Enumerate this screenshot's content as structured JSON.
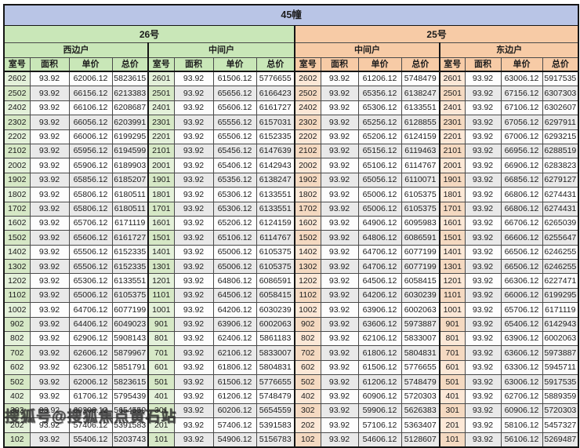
{
  "title": "45幢",
  "watermark": "搜狐号@搜狐焦点黄石站",
  "column_headers": [
    "室号",
    "面积",
    "单价",
    "总价"
  ],
  "buildings": [
    {
      "name": "26号",
      "color": "#c9e7b8"
    },
    {
      "name": "25号",
      "color": "#f7cba6"
    }
  ],
  "colors": {
    "title_band": "#b9c5e6",
    "building_26_green": "#c9e7b8",
    "building_25_orange": "#f7cba6",
    "stripe_gray": "#e9e9e9",
    "border_dark": "#151515"
  },
  "groups": [
    {
      "building": "26号",
      "unit": "西边户",
      "theme": "green",
      "rows": [
        [
          "2602",
          "93.92",
          "62006.12",
          "5823615"
        ],
        [
          "2502",
          "93.92",
          "66156.12",
          "6213383"
        ],
        [
          "2402",
          "93.92",
          "66106.12",
          "6208687"
        ],
        [
          "2302",
          "93.92",
          "66056.12",
          "6203991"
        ],
        [
          "2202",
          "93.92",
          "66006.12",
          "6199295"
        ],
        [
          "2102",
          "93.92",
          "65956.12",
          "6194599"
        ],
        [
          "2002",
          "93.92",
          "65906.12",
          "6189903"
        ],
        [
          "1902",
          "93.92",
          "65856.12",
          "6185207"
        ],
        [
          "1802",
          "93.92",
          "65806.12",
          "6180511"
        ],
        [
          "1702",
          "93.92",
          "65806.12",
          "6180511"
        ],
        [
          "1602",
          "93.92",
          "65706.12",
          "6171119"
        ],
        [
          "1502",
          "93.92",
          "65606.12",
          "6161727"
        ],
        [
          "1402",
          "93.92",
          "65506.12",
          "6152335"
        ],
        [
          "1302",
          "93.92",
          "65506.12",
          "6152335"
        ],
        [
          "1202",
          "93.92",
          "65306.12",
          "6133551"
        ],
        [
          "1102",
          "93.92",
          "65006.12",
          "6105375"
        ],
        [
          "1002",
          "93.92",
          "64706.12",
          "6077199"
        ],
        [
          "902",
          "93.92",
          "64406.12",
          "6049023"
        ],
        [
          "802",
          "93.92",
          "62906.12",
          "5908143"
        ],
        [
          "702",
          "93.92",
          "62606.12",
          "5879967"
        ],
        [
          "602",
          "93.92",
          "62306.12",
          "5851791"
        ],
        [
          "502",
          "93.92",
          "62006.12",
          "5823615"
        ],
        [
          "402",
          "93.92",
          "61706.12",
          "5795439"
        ],
        [
          "302",
          "93.92",
          "60206.12",
          "5654559"
        ],
        [
          "202",
          "93.92",
          "57406.12",
          "5391583"
        ],
        [
          "102",
          "93.92",
          "55406.12",
          "5203743"
        ]
      ]
    },
    {
      "building": "26号",
      "unit": "中间户",
      "theme": "green",
      "rows": [
        [
          "2601",
          "93.92",
          "61506.12",
          "5776655"
        ],
        [
          "2501",
          "93.92",
          "65656.12",
          "6166423"
        ],
        [
          "2401",
          "93.92",
          "65606.12",
          "6161727"
        ],
        [
          "2301",
          "93.92",
          "65556.12",
          "6157031"
        ],
        [
          "2201",
          "93.92",
          "65506.12",
          "6152335"
        ],
        [
          "2101",
          "93.92",
          "65456.12",
          "6147639"
        ],
        [
          "2001",
          "93.92",
          "65406.12",
          "6142943"
        ],
        [
          "1901",
          "93.92",
          "65356.12",
          "6138247"
        ],
        [
          "1801",
          "93.92",
          "65306.12",
          "6133551"
        ],
        [
          "1701",
          "93.92",
          "65306.12",
          "6133551"
        ],
        [
          "1601",
          "93.92",
          "65206.12",
          "6124159"
        ],
        [
          "1501",
          "93.92",
          "65106.12",
          "6114767"
        ],
        [
          "1401",
          "93.92",
          "65006.12",
          "6105375"
        ],
        [
          "1301",
          "93.92",
          "65006.12",
          "6105375"
        ],
        [
          "1201",
          "93.92",
          "64806.12",
          "6086591"
        ],
        [
          "1101",
          "93.92",
          "64506.12",
          "6058415"
        ],
        [
          "1001",
          "93.92",
          "64206.12",
          "6030239"
        ],
        [
          "901",
          "93.92",
          "63906.12",
          "6002063"
        ],
        [
          "801",
          "93.92",
          "62406.12",
          "5861183"
        ],
        [
          "701",
          "93.92",
          "62106.12",
          "5833007"
        ],
        [
          "601",
          "93.92",
          "61806.12",
          "5804831"
        ],
        [
          "501",
          "93.92",
          "61506.12",
          "5776655"
        ],
        [
          "401",
          "93.92",
          "61206.12",
          "5748479"
        ],
        [
          "301",
          "93.92",
          "60206.12",
          "5654559"
        ],
        [
          "201",
          "93.92",
          "57406.12",
          "5391583"
        ],
        [
          "101",
          "93.92",
          "54906.12",
          "5156783"
        ]
      ]
    },
    {
      "building": "25号",
      "unit": "中间户",
      "theme": "orange",
      "rows": [
        [
          "2602",
          "93.92",
          "61206.12",
          "5748479"
        ],
        [
          "2502",
          "93.92",
          "65356.12",
          "6138247"
        ],
        [
          "2402",
          "93.92",
          "65306.12",
          "6133551"
        ],
        [
          "2302",
          "93.92",
          "65256.12",
          "6128855"
        ],
        [
          "2202",
          "93.92",
          "65206.12",
          "6124159"
        ],
        [
          "2102",
          "93.92",
          "65156.12",
          "6119463"
        ],
        [
          "2002",
          "93.92",
          "65106.12",
          "6114767"
        ],
        [
          "1902",
          "93.92",
          "65056.12",
          "6110071"
        ],
        [
          "1802",
          "93.92",
          "65006.12",
          "6105375"
        ],
        [
          "1702",
          "93.92",
          "65006.12",
          "6105375"
        ],
        [
          "1602",
          "93.92",
          "64906.12",
          "6095983"
        ],
        [
          "1502",
          "93.92",
          "64806.12",
          "6086591"
        ],
        [
          "1402",
          "93.92",
          "64706.12",
          "6077199"
        ],
        [
          "1302",
          "93.92",
          "64706.12",
          "6077199"
        ],
        [
          "1202",
          "93.92",
          "64506.12",
          "6058415"
        ],
        [
          "1102",
          "93.92",
          "64206.12",
          "6030239"
        ],
        [
          "1002",
          "93.92",
          "63906.12",
          "6002063"
        ],
        [
          "902",
          "93.92",
          "63606.12",
          "5973887"
        ],
        [
          "802",
          "93.92",
          "62106.12",
          "5833007"
        ],
        [
          "702",
          "93.92",
          "61806.12",
          "5804831"
        ],
        [
          "602",
          "93.92",
          "61506.12",
          "5776655"
        ],
        [
          "502",
          "93.92",
          "61206.12",
          "5748479"
        ],
        [
          "402",
          "93.92",
          "60906.12",
          "5720303"
        ],
        [
          "302",
          "93.92",
          "59906.12",
          "5626383"
        ],
        [
          "202",
          "93.92",
          "57106.12",
          "5363407"
        ],
        [
          "102",
          "93.92",
          "54606.12",
          "5128607"
        ]
      ]
    },
    {
      "building": "25号",
      "unit": "东边户",
      "theme": "orange",
      "rows": [
        [
          "2601",
          "93.92",
          "63006.12",
          "5917535"
        ],
        [
          "2501",
          "93.92",
          "67156.12",
          "6307303"
        ],
        [
          "2401",
          "93.92",
          "67106.12",
          "6302607"
        ],
        [
          "2301",
          "93.92",
          "67056.12",
          "6297911"
        ],
        [
          "2201",
          "93.92",
          "67006.12",
          "6293215"
        ],
        [
          "2101",
          "93.92",
          "66956.12",
          "6288519"
        ],
        [
          "2001",
          "93.92",
          "66906.12",
          "6283823"
        ],
        [
          "1901",
          "93.92",
          "66856.12",
          "6279127"
        ],
        [
          "1801",
          "93.92",
          "66806.12",
          "6274431"
        ],
        [
          "1701",
          "93.92",
          "66806.12",
          "6274431"
        ],
        [
          "1601",
          "93.92",
          "66706.12",
          "6265039"
        ],
        [
          "1501",
          "93.92",
          "66606.12",
          "6255647"
        ],
        [
          "1401",
          "93.92",
          "66506.12",
          "6246255"
        ],
        [
          "1301",
          "93.92",
          "66506.12",
          "6246255"
        ],
        [
          "1201",
          "93.92",
          "66306.12",
          "6227471"
        ],
        [
          "1101",
          "93.92",
          "66006.12",
          "6199295"
        ],
        [
          "1001",
          "93.92",
          "65706.12",
          "6171119"
        ],
        [
          "901",
          "93.92",
          "65406.12",
          "6142943"
        ],
        [
          "801",
          "93.92",
          "63906.12",
          "6002063"
        ],
        [
          "701",
          "93.92",
          "63606.12",
          "5973887"
        ],
        [
          "601",
          "93.92",
          "63306.12",
          "5945711"
        ],
        [
          "501",
          "93.92",
          "63006.12",
          "5917535"
        ],
        [
          "401",
          "93.92",
          "62706.12",
          "5889359"
        ],
        [
          "301",
          "93.92",
          "60906.12",
          "5720303"
        ],
        [
          "201",
          "93.92",
          "58106.12",
          "5457327"
        ],
        [
          "101",
          "93.92",
          "56106.12",
          "5269487"
        ]
      ]
    }
  ]
}
